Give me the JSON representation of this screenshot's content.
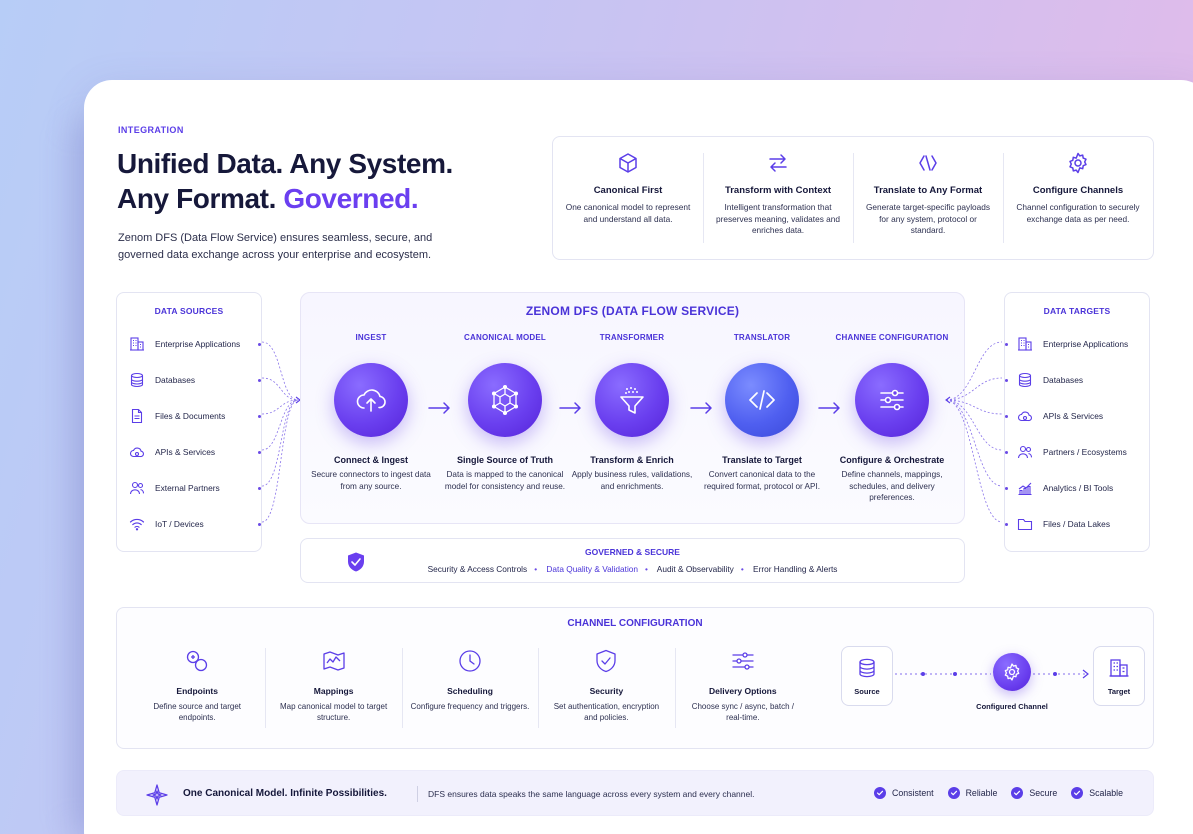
{
  "header": {
    "eyebrow": "INTEGRATION",
    "title_line1": "Unified Data. Any System.",
    "title_line2_plain": "Any Format.",
    "title_line2_accent": "Governed.",
    "description": "Zenom DFS (Data Flow Service) ensures seamless, secure, and governed data exchange across your enterprise and ecosystem."
  },
  "features": [
    {
      "icon": "cube-icon",
      "title": "Canonical First",
      "desc": "One canonical model to represent and understand all data."
    },
    {
      "icon": "swap-arrows-icon",
      "title": "Transform with Context",
      "desc": "Intelligent transformation that preserves meaning, validates and enriches data."
    },
    {
      "icon": "code-brackets-icon",
      "title": "Translate to Any Format",
      "desc": "Generate target-specific payloads for any system, protocol or standard."
    },
    {
      "icon": "gear-icon",
      "title": "Configure Channels",
      "desc": "Channel configuration to securely exchange data as per need."
    }
  ],
  "data_sources": {
    "heading": "DATA SOURCES",
    "items": [
      {
        "icon": "building-icon",
        "label": "Enterprise Applications"
      },
      {
        "icon": "database-icon",
        "label": "Databases"
      },
      {
        "icon": "document-icon",
        "label": "Files & Documents"
      },
      {
        "icon": "cloud-icon",
        "label": "APIs & Services"
      },
      {
        "icon": "users-icon",
        "label": "External Partners"
      },
      {
        "icon": "wifi-icon",
        "label": "IoT / Devices"
      }
    ]
  },
  "data_targets": {
    "heading": "DATA TARGETS",
    "items": [
      {
        "icon": "building-icon",
        "label": "Enterprise Applications"
      },
      {
        "icon": "database-icon",
        "label": "Databases"
      },
      {
        "icon": "cloud-icon",
        "label": "APIs & Services"
      },
      {
        "icon": "users-icon",
        "label": "Partners / Ecosystems"
      },
      {
        "icon": "chart-icon",
        "label": "Analytics / BI Tools"
      },
      {
        "icon": "folder-icon",
        "label": "Files / Data Lakes"
      }
    ]
  },
  "dfs": {
    "heading": "ZENOM DFS (DATA FLOW SERVICE)",
    "stages": [
      {
        "tag": "INGEST",
        "icon": "cloud-upload-icon",
        "name": "Connect & Ingest",
        "desc": "Secure connectors to ingest data from any source."
      },
      {
        "tag": "CANONICAL MODEL",
        "icon": "network-cube-icon",
        "name": "Single Source of Truth",
        "desc": "Data is mapped to the canonical model for consistency and reuse."
      },
      {
        "tag": "TRANSFORMER",
        "icon": "funnel-icon",
        "name": "Transform & Enrich",
        "desc": "Apply business rules, validations, and enrichments."
      },
      {
        "tag": "TRANSLATOR",
        "icon": "code-icon",
        "name": "Translate to Target",
        "desc": "Convert canonical data to the required format, protocol or API."
      },
      {
        "tag": "CHANNEE CONFIGURATION",
        "icon": "sliders-icon",
        "name": "Configure & Orchestrate",
        "desc": "Define channels, mappings, schedules, and delivery preferences."
      }
    ]
  },
  "governed": {
    "heading": "GOVERNED & SECURE",
    "items": [
      "Security & Access Controls",
      "Data Quality & Validation",
      "Audit & Observability",
      "Error Handling & Alerts"
    ]
  },
  "channel": {
    "heading": "CHANNEL CONFIGURATION",
    "items": [
      {
        "icon": "endpoints-icon",
        "title": "Endpoints",
        "desc": "Define source and target endpoints."
      },
      {
        "icon": "map-icon",
        "title": "Mappings",
        "desc": "Map canonical model to target structure."
      },
      {
        "icon": "clock-icon",
        "title": "Scheduling",
        "desc": "Configure frequency and triggers."
      },
      {
        "icon": "shield-check-icon",
        "title": "Security",
        "desc": "Set authentication, encryption and policies."
      },
      {
        "icon": "sliders-icon",
        "title": "Delivery Options",
        "desc": "Choose sync / async, batch / real-time."
      }
    ],
    "flow": {
      "source": "Source",
      "middle": "Configured Channel",
      "target": "Target"
    }
  },
  "banner": {
    "title": "One Canonical Model. Infinite Possibilities.",
    "desc": "DFS ensures data speaks the same language across every system and every channel.",
    "badges": [
      "Consistent",
      "Reliable",
      "Secure",
      "Scalable"
    ]
  }
}
